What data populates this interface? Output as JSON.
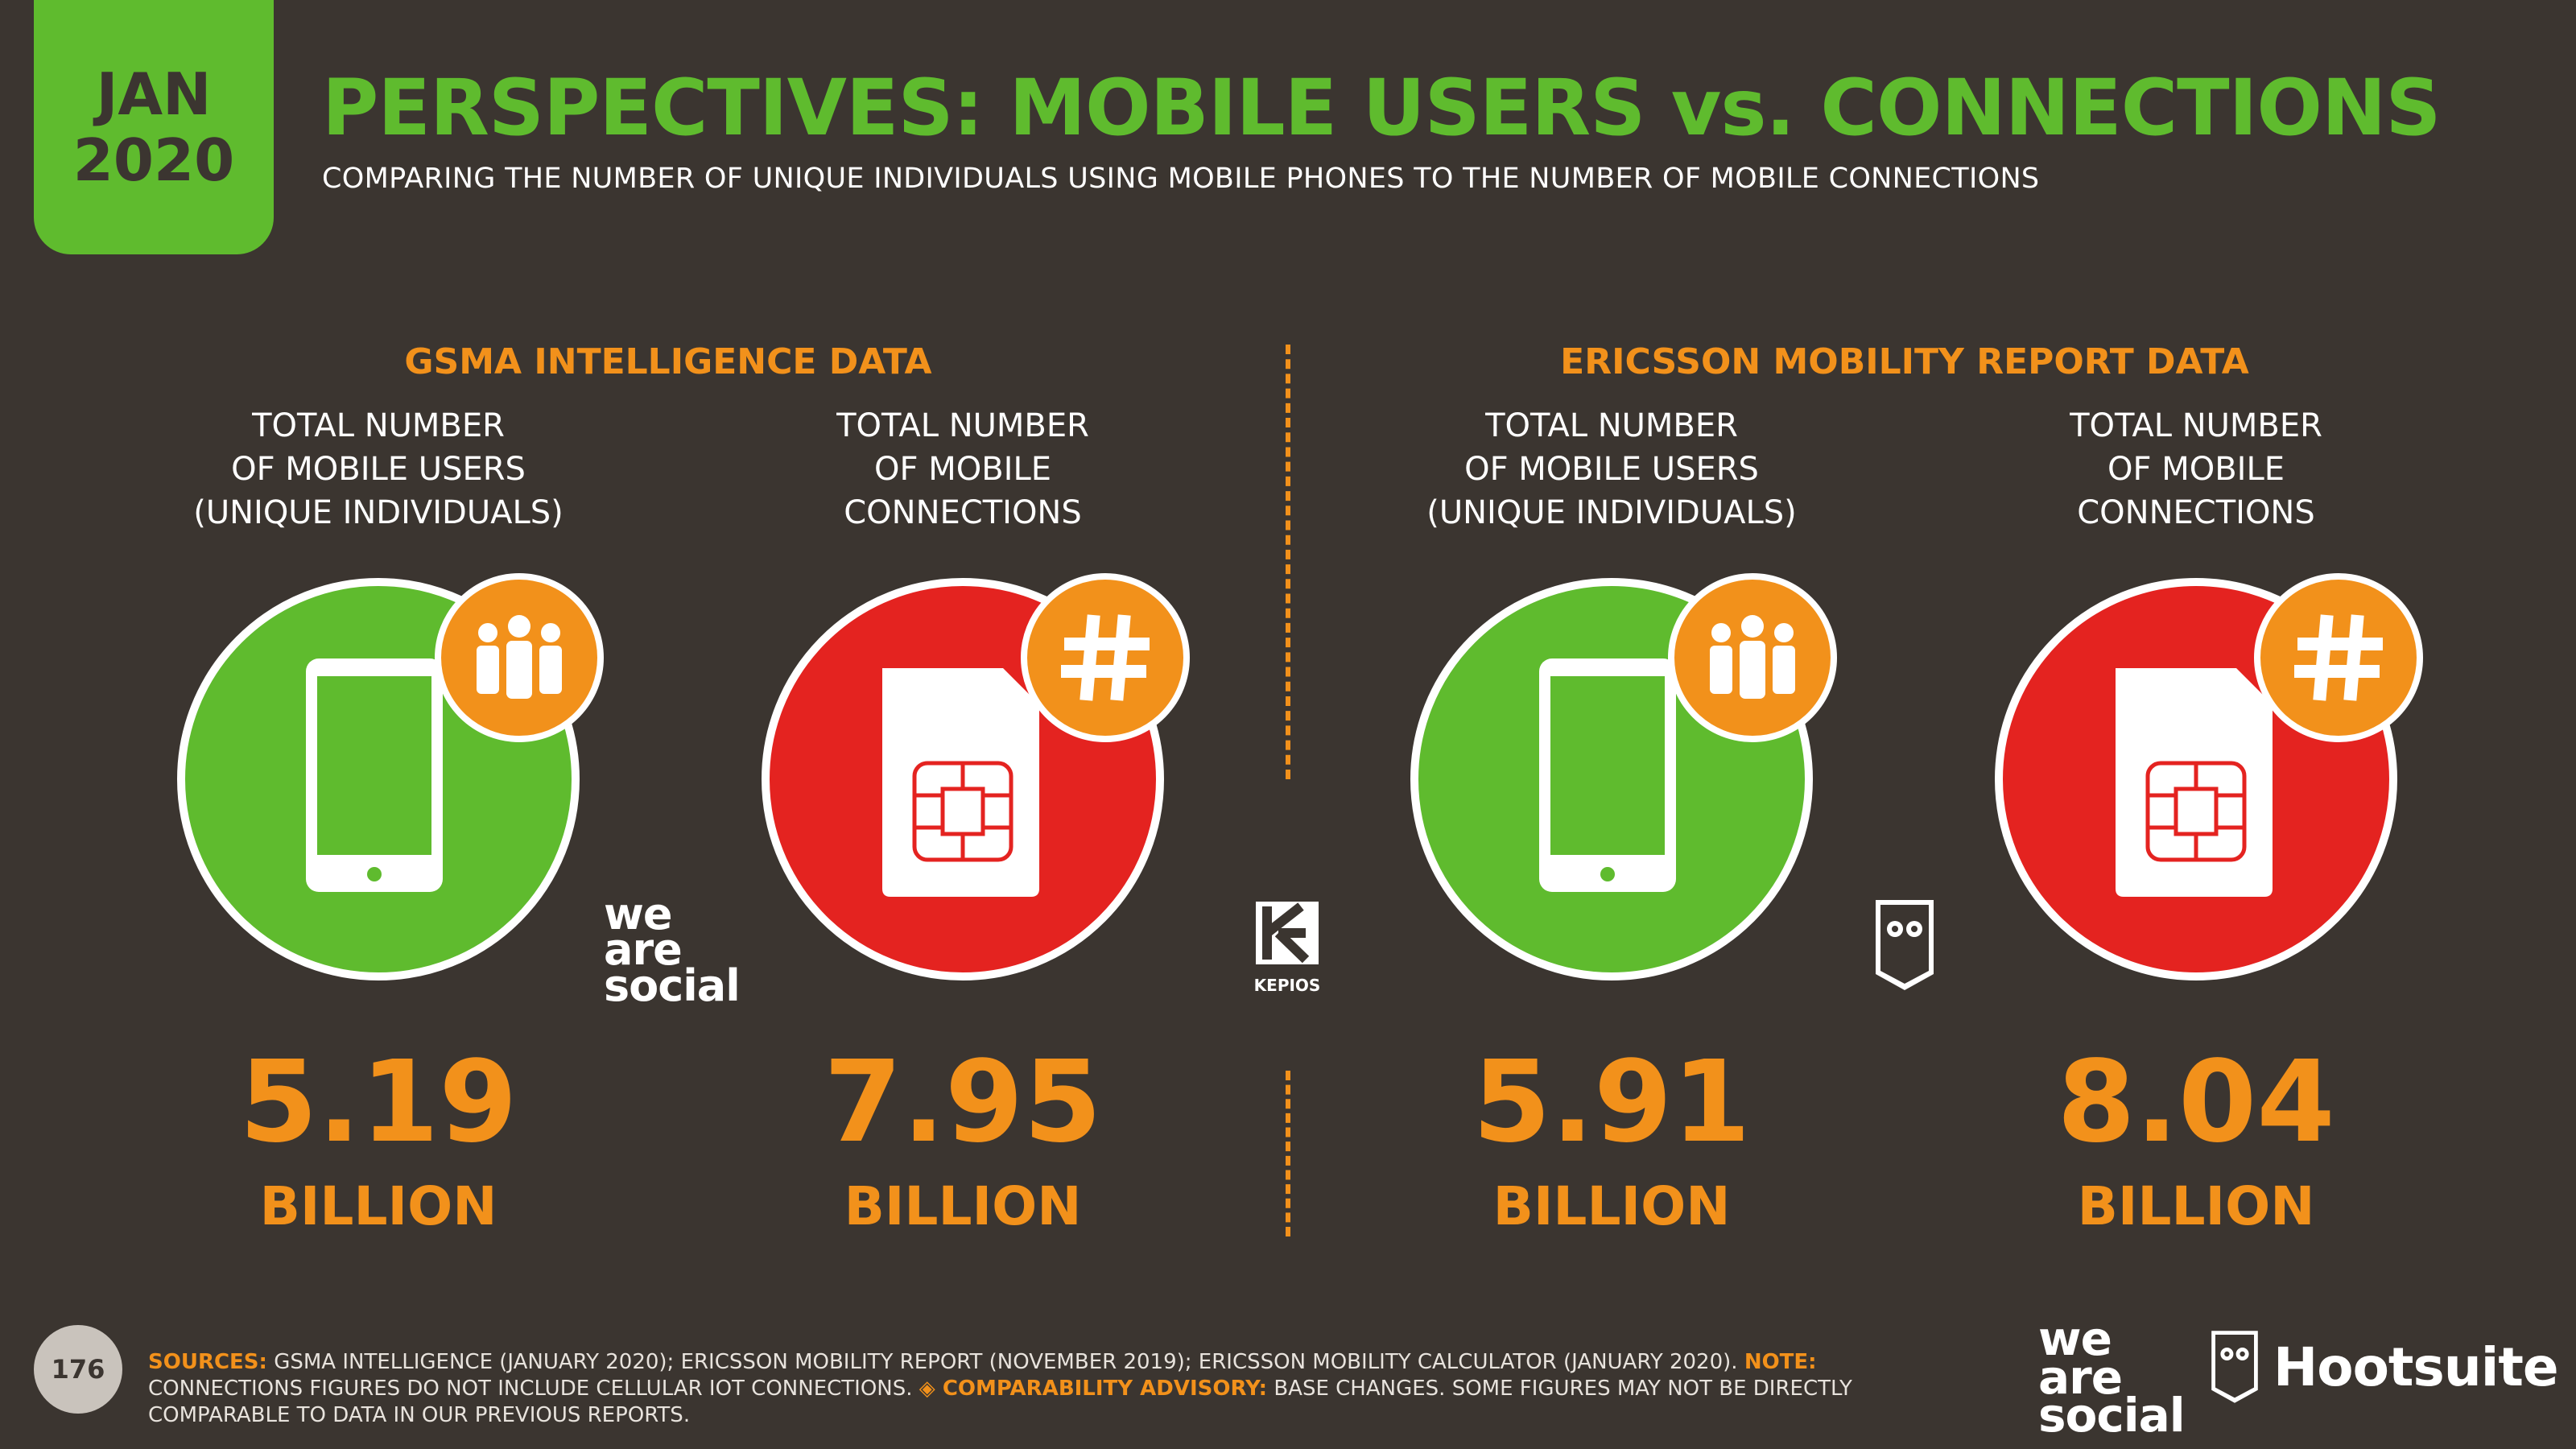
{
  "header": {
    "date_month": "JAN",
    "date_year": "2020",
    "title": "PERSPECTIVES: MOBILE USERS vs. CONNECTIONS",
    "subtitle": "COMPARING THE NUMBER OF UNIQUE INDIVIDUALS USING MOBILE PHONES TO THE NUMBER OF MOBILE CONNECTIONS"
  },
  "sections": [
    {
      "heading": "GSMA INTELLIGENCE DATA",
      "users": {
        "label_line1": "TOTAL NUMBER",
        "label_line2": "OF MOBILE USERS",
        "label_line3": "(UNIQUE INDIVIDUALS)",
        "value": "5.19",
        "unit": "BILLION"
      },
      "connections": {
        "label_line1": "TOTAL NUMBER",
        "label_line2": "OF MOBILE",
        "label_line3": "CONNECTIONS",
        "value": "7.95",
        "unit": "BILLION"
      }
    },
    {
      "heading": "ERICSSON MOBILITY REPORT DATA",
      "users": {
        "label_line1": "TOTAL NUMBER",
        "label_line2": "OF MOBILE USERS",
        "label_line3": "(UNIQUE INDIVIDUALS)",
        "value": "5.91",
        "unit": "BILLION"
      },
      "connections": {
        "label_line1": "TOTAL NUMBER",
        "label_line2": "OF MOBILE",
        "label_line3": "CONNECTIONS",
        "value": "8.04",
        "unit": "BILLION"
      }
    }
  ],
  "icons": {
    "phone": "mobile-phone-icon",
    "sim": "sim-card-icon",
    "people": "people-icon",
    "hash": "hash-icon"
  },
  "colors": {
    "background": "#3b3530",
    "green": "#5fbb2e",
    "red": "#e42320",
    "orange": "#f2911b"
  },
  "logos": {
    "we_are_social_1": "we",
    "we_are_social_2": "are",
    "we_are_social_3": "social",
    "kepios": "KEPIOS",
    "hootsuite": "Hootsuite"
  },
  "footer": {
    "page_number": "176",
    "sources_label": "SOURCES:",
    "sources_text": " GSMA INTELLIGENCE (JANUARY 2020); ERICSSON MOBILITY REPORT (NOVEMBER 2019); ERICSSON MOBILITY CALCULATOR (JANUARY 2020). ",
    "note_label": "NOTE:",
    "note_text": " CONNECTIONS FIGURES DO NOT INCLUDE CELLULAR IOT CONNECTIONS. ",
    "advisory_label": "◈ COMPARABILITY ADVISORY:",
    "advisory_text": " BASE CHANGES. SOME FIGURES MAY NOT BE DIRECTLY COMPARABLE TO DATA IN OUR PREVIOUS REPORTS."
  }
}
